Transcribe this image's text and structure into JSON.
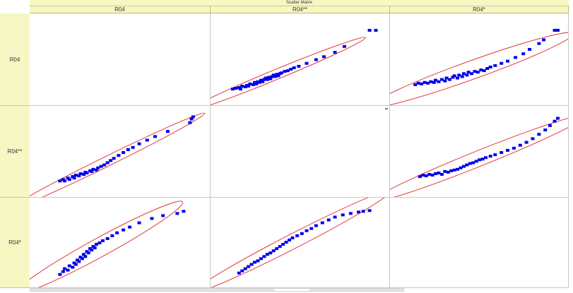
{
  "title": "Scatter Matrix",
  "colors": {
    "point": "#0000ee",
    "ellipse": "#e23a3a",
    "header_bg": "#f7f7c4"
  },
  "chart_data": {
    "type": "scatter",
    "subtype": "scatter-matrix",
    "variables": [
      "R04",
      "R04**",
      "R04*"
    ],
    "grid": true,
    "confidence_ellipse": true,
    "panels": [
      {
        "row": "R04",
        "col": "R04**",
        "points": [
          [
            0.05,
            0.12
          ],
          [
            0.07,
            0.13
          ],
          [
            0.09,
            0.14
          ],
          [
            0.1,
            0.12
          ],
          [
            0.11,
            0.16
          ],
          [
            0.13,
            0.15
          ],
          [
            0.14,
            0.17
          ],
          [
            0.15,
            0.16
          ],
          [
            0.16,
            0.19
          ],
          [
            0.18,
            0.18
          ],
          [
            0.19,
            0.21
          ],
          [
            0.2,
            0.19
          ],
          [
            0.21,
            0.22
          ],
          [
            0.22,
            0.21
          ],
          [
            0.23,
            0.24
          ],
          [
            0.24,
            0.22
          ],
          [
            0.25,
            0.25
          ],
          [
            0.26,
            0.27
          ],
          [
            0.27,
            0.25
          ],
          [
            0.28,
            0.28
          ],
          [
            0.29,
            0.26
          ],
          [
            0.3,
            0.29
          ],
          [
            0.31,
            0.31
          ],
          [
            0.32,
            0.29
          ],
          [
            0.33,
            0.32
          ],
          [
            0.34,
            0.3
          ],
          [
            0.35,
            0.33
          ],
          [
            0.36,
            0.34
          ],
          [
            0.38,
            0.36
          ],
          [
            0.4,
            0.37
          ],
          [
            0.42,
            0.39
          ],
          [
            0.44,
            0.41
          ],
          [
            0.47,
            0.43
          ],
          [
            0.52,
            0.47
          ],
          [
            0.58,
            0.52
          ],
          [
            0.63,
            0.56
          ],
          [
            0.7,
            0.62
          ],
          [
            0.76,
            0.7
          ],
          [
            0.92,
            0.92
          ],
          [
            0.96,
            0.92
          ]
        ]
      },
      {
        "row": "R04",
        "col": "R04*",
        "points": [
          [
            0.07,
            0.18
          ],
          [
            0.09,
            0.2
          ],
          [
            0.11,
            0.19
          ],
          [
            0.13,
            0.21
          ],
          [
            0.15,
            0.2
          ],
          [
            0.17,
            0.22
          ],
          [
            0.19,
            0.21
          ],
          [
            0.2,
            0.24
          ],
          [
            0.22,
            0.22
          ],
          [
            0.24,
            0.25
          ],
          [
            0.26,
            0.23
          ],
          [
            0.27,
            0.27
          ],
          [
            0.29,
            0.25
          ],
          [
            0.31,
            0.28
          ],
          [
            0.32,
            0.3
          ],
          [
            0.34,
            0.27
          ],
          [
            0.35,
            0.31
          ],
          [
            0.37,
            0.29
          ],
          [
            0.38,
            0.33
          ],
          [
            0.4,
            0.31
          ],
          [
            0.41,
            0.35
          ],
          [
            0.43,
            0.33
          ],
          [
            0.45,
            0.36
          ],
          [
            0.47,
            0.35
          ],
          [
            0.49,
            0.38
          ],
          [
            0.51,
            0.37
          ],
          [
            0.53,
            0.4
          ],
          [
            0.55,
            0.42
          ],
          [
            0.58,
            0.44
          ],
          [
            0.62,
            0.47
          ],
          [
            0.66,
            0.5
          ],
          [
            0.71,
            0.55
          ],
          [
            0.76,
            0.6
          ],
          [
            0.8,
            0.66
          ],
          [
            0.86,
            0.74
          ],
          [
            0.89,
            0.79
          ],
          [
            0.96,
            0.92
          ],
          [
            0.98,
            0.92
          ]
        ]
      },
      {
        "row": "R04**",
        "col": "R04",
        "points": [
          [
            0.1,
            0.12
          ],
          [
            0.12,
            0.14
          ],
          [
            0.13,
            0.12
          ],
          [
            0.15,
            0.16
          ],
          [
            0.16,
            0.14
          ],
          [
            0.18,
            0.18
          ],
          [
            0.19,
            0.16
          ],
          [
            0.2,
            0.2
          ],
          [
            0.22,
            0.19
          ],
          [
            0.23,
            0.22
          ],
          [
            0.25,
            0.21
          ],
          [
            0.26,
            0.24
          ],
          [
            0.27,
            0.23
          ],
          [
            0.29,
            0.26
          ],
          [
            0.3,
            0.25
          ],
          [
            0.31,
            0.28
          ],
          [
            0.33,
            0.27
          ],
          [
            0.34,
            0.3
          ],
          [
            0.36,
            0.32
          ],
          [
            0.38,
            0.34
          ],
          [
            0.4,
            0.37
          ],
          [
            0.42,
            0.4
          ],
          [
            0.44,
            0.43
          ],
          [
            0.47,
            0.47
          ],
          [
            0.5,
            0.51
          ],
          [
            0.53,
            0.55
          ],
          [
            0.56,
            0.58
          ],
          [
            0.6,
            0.63
          ],
          [
            0.65,
            0.68
          ],
          [
            0.7,
            0.73
          ],
          [
            0.78,
            0.8
          ],
          [
            0.92,
            0.92
          ],
          [
            0.93,
            0.97
          ],
          [
            0.94,
            1.0
          ]
        ]
      },
      {
        "row": "R04**",
        "col": "R04*",
        "points": [
          [
            0.1,
            0.18
          ],
          [
            0.12,
            0.2
          ],
          [
            0.14,
            0.19
          ],
          [
            0.16,
            0.21
          ],
          [
            0.18,
            0.2
          ],
          [
            0.2,
            0.22
          ],
          [
            0.22,
            0.23
          ],
          [
            0.24,
            0.21
          ],
          [
            0.26,
            0.25
          ],
          [
            0.28,
            0.24
          ],
          [
            0.3,
            0.26
          ],
          [
            0.32,
            0.27
          ],
          [
            0.34,
            0.28
          ],
          [
            0.36,
            0.3
          ],
          [
            0.38,
            0.32
          ],
          [
            0.4,
            0.34
          ],
          [
            0.42,
            0.36
          ],
          [
            0.44,
            0.37
          ],
          [
            0.46,
            0.39
          ],
          [
            0.48,
            0.41
          ],
          [
            0.5,
            0.42
          ],
          [
            0.52,
            0.44
          ],
          [
            0.55,
            0.46
          ],
          [
            0.58,
            0.48
          ],
          [
            0.62,
            0.51
          ],
          [
            0.66,
            0.54
          ],
          [
            0.7,
            0.57
          ],
          [
            0.74,
            0.61
          ],
          [
            0.78,
            0.65
          ],
          [
            0.82,
            0.7
          ],
          [
            0.86,
            0.76
          ],
          [
            0.9,
            0.82
          ],
          [
            0.93,
            0.88
          ],
          [
            0.96,
            0.94
          ],
          [
            0.98,
            0.98
          ]
        ]
      },
      {
        "row": "R04*",
        "col": "R04",
        "points": [
          [
            0.1,
            0.08
          ],
          [
            0.12,
            0.12
          ],
          [
            0.13,
            0.16
          ],
          [
            0.15,
            0.14
          ],
          [
            0.16,
            0.2
          ],
          [
            0.18,
            0.18
          ],
          [
            0.19,
            0.24
          ],
          [
            0.2,
            0.22
          ],
          [
            0.21,
            0.28
          ],
          [
            0.22,
            0.26
          ],
          [
            0.23,
            0.32
          ],
          [
            0.24,
            0.3
          ],
          [
            0.25,
            0.36
          ],
          [
            0.26,
            0.33
          ],
          [
            0.27,
            0.4
          ],
          [
            0.28,
            0.38
          ],
          [
            0.29,
            0.44
          ],
          [
            0.3,
            0.42
          ],
          [
            0.31,
            0.47
          ],
          [
            0.32,
            0.45
          ],
          [
            0.33,
            0.5
          ],
          [
            0.35,
            0.52
          ],
          [
            0.37,
            0.55
          ],
          [
            0.4,
            0.58
          ],
          [
            0.43,
            0.62
          ],
          [
            0.46,
            0.66
          ],
          [
            0.5,
            0.7
          ],
          [
            0.54,
            0.74
          ],
          [
            0.6,
            0.8
          ],
          [
            0.68,
            0.86
          ],
          [
            0.75,
            0.9
          ],
          [
            0.84,
            0.93
          ],
          [
            0.88,
            0.96
          ]
        ]
      },
      {
        "row": "R04*",
        "col": "R04**",
        "points": [
          [
            0.09,
            0.1
          ],
          [
            0.11,
            0.13
          ],
          [
            0.13,
            0.16
          ],
          [
            0.15,
            0.19
          ],
          [
            0.17,
            0.22
          ],
          [
            0.19,
            0.25
          ],
          [
            0.21,
            0.27
          ],
          [
            0.23,
            0.3
          ],
          [
            0.25,
            0.33
          ],
          [
            0.27,
            0.36
          ],
          [
            0.29,
            0.38
          ],
          [
            0.31,
            0.41
          ],
          [
            0.33,
            0.44
          ],
          [
            0.35,
            0.47
          ],
          [
            0.37,
            0.5
          ],
          [
            0.39,
            0.53
          ],
          [
            0.41,
            0.56
          ],
          [
            0.43,
            0.59
          ],
          [
            0.46,
            0.62
          ],
          [
            0.49,
            0.65
          ],
          [
            0.52,
            0.69
          ],
          [
            0.55,
            0.72
          ],
          [
            0.58,
            0.76
          ],
          [
            0.62,
            0.8
          ],
          [
            0.66,
            0.84
          ],
          [
            0.7,
            0.88
          ],
          [
            0.75,
            0.91
          ],
          [
            0.8,
            0.93
          ],
          [
            0.85,
            0.95
          ],
          [
            0.88,
            0.96
          ],
          [
            0.92,
            0.97
          ]
        ]
      }
    ]
  }
}
